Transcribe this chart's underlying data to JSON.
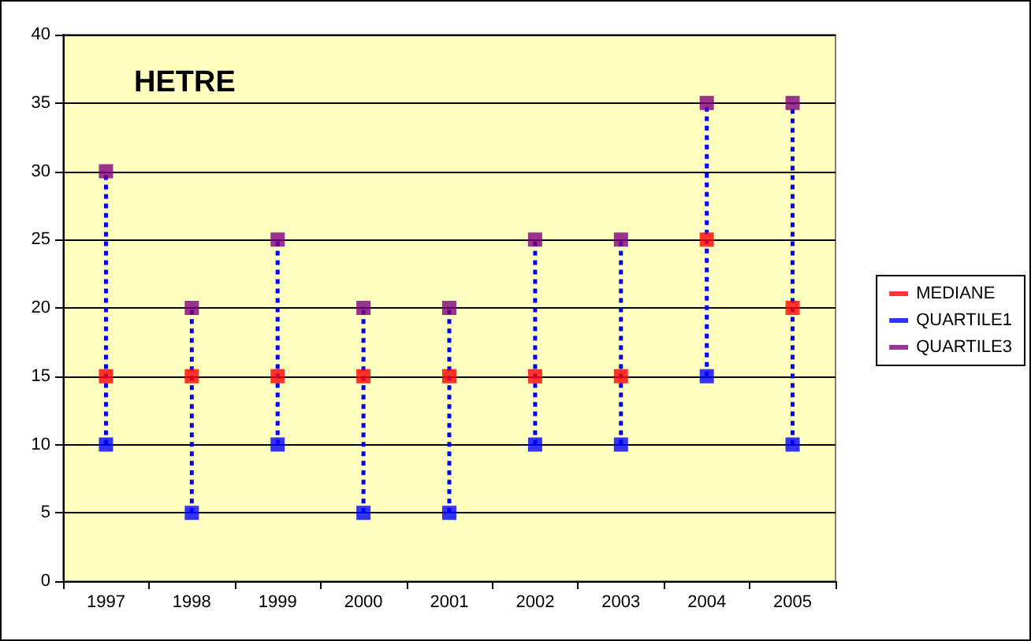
{
  "chart_data": {
    "type": "scatter",
    "title": "HETRE",
    "categories": [
      "1997",
      "1998",
      "1999",
      "2000",
      "2001",
      "2002",
      "2003",
      "2004",
      "2005"
    ],
    "series": [
      {
        "name": "MEDIANE",
        "color": "#ff0000",
        "values": [
          15,
          15,
          15,
          15,
          15,
          15,
          15,
          25,
          20
        ]
      },
      {
        "name": "QUARTILE1",
        "color": "#0000ff",
        "values": [
          10,
          5,
          10,
          5,
          5,
          10,
          10,
          15,
          10
        ]
      },
      {
        "name": "QUARTILE3",
        "color": "#800080",
        "values": [
          30,
          20,
          25,
          20,
          20,
          25,
          25,
          35,
          35
        ]
      }
    ],
    "ylim": [
      0,
      40
    ],
    "yticks": [
      0,
      5,
      10,
      15,
      20,
      25,
      30,
      35,
      40
    ],
    "grid": "y",
    "legend": "right",
    "marker": "square"
  }
}
